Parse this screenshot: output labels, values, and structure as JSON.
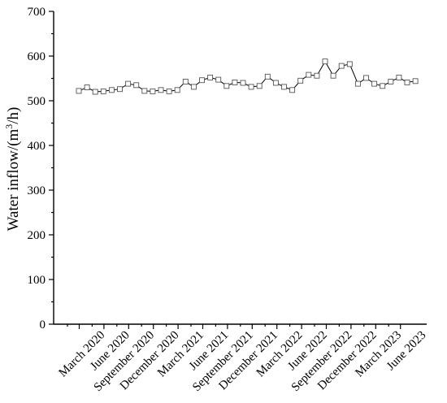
{
  "chart_data": {
    "type": "line",
    "ylabel_main": "Water inflow/(m",
    "ylabel_sup": "3",
    "ylabel_tail": "/h)",
    "xlabel": "",
    "ylim": [
      0,
      700
    ],
    "y_ticks": [
      0,
      100,
      200,
      300,
      400,
      500,
      600,
      700
    ],
    "x_tick_labels": [
      "March 2020",
      "June 2020",
      "September 2020",
      "December 2020",
      "March 2021",
      "June 2021",
      "September 2021",
      "December 2021",
      "March 2022",
      "June 2022",
      "September 2022",
      "December 2022",
      "March 2023",
      "June 2023"
    ],
    "grid": false,
    "legend": "none",
    "marker": "open-square",
    "line_color": "#000000",
    "marker_edge_color": "#555555",
    "series": [
      {
        "values": [
          522,
          530,
          520,
          521,
          524,
          526,
          538,
          535,
          522,
          521,
          524,
          521,
          524,
          543,
          531,
          546,
          552,
          547,
          533,
          541,
          540,
          531,
          533,
          554,
          540,
          531,
          524,
          545,
          558,
          556,
          588,
          556,
          578,
          582,
          538,
          551,
          538,
          533,
          543,
          552,
          541,
          544
        ]
      }
    ]
  }
}
